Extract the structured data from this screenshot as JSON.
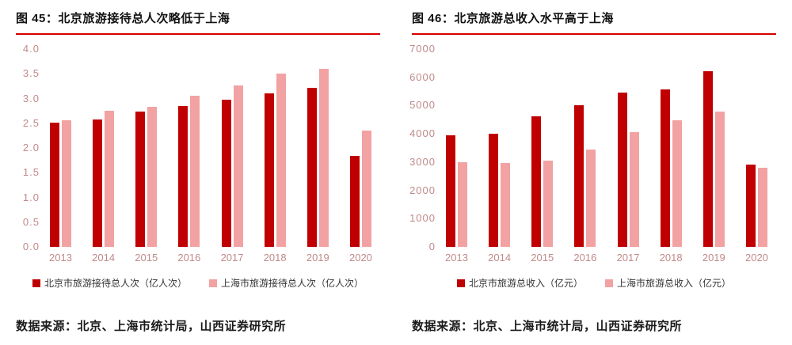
{
  "colors": {
    "beijing": "#C00000",
    "shanghai": "#F2A2A2",
    "title_rule": "#D60000",
    "axis_label": "#C08A8A"
  },
  "chart_data": [
    {
      "type": "bar",
      "title": "图 45：北京旅游接待总人次略低于上海",
      "categories": [
        "2013",
        "2014",
        "2015",
        "2016",
        "2017",
        "2018",
        "2019",
        "2020"
      ],
      "series": [
        {
          "name": "北京市旅游接待总人次（亿人次）",
          "color_key": "beijing",
          "values": [
            2.51,
            2.57,
            2.73,
            2.85,
            2.97,
            3.1,
            3.22,
            1.84
          ]
        },
        {
          "name": "上海市旅游接待总人次（亿人次）",
          "color_key": "shanghai",
          "values": [
            2.56,
            2.76,
            2.83,
            3.05,
            3.27,
            3.5,
            3.6,
            2.36
          ]
        }
      ],
      "ylim": [
        0,
        4
      ],
      "yticks": [
        "4.0",
        "3.5",
        "3.0",
        "2.5",
        "2.0",
        "1.5",
        "1.0",
        "0.5",
        "0.0"
      ],
      "grid": false,
      "legend_position": "bottom",
      "source": "数据来源：北京、上海市统计局，山西证券研究所"
    },
    {
      "type": "bar",
      "title": "图 46：北京旅游总收入水平高于上海",
      "categories": [
        "2013",
        "2014",
        "2015",
        "2016",
        "2017",
        "2018",
        "2019",
        "2020"
      ],
      "series": [
        {
          "name": "北京市旅游总收入（亿元）",
          "color_key": "beijing",
          "values": [
            3960,
            4000,
            4610,
            5020,
            5470,
            5560,
            6220,
            2920
          ]
        },
        {
          "name": "上海市旅游总收入（亿元）",
          "color_key": "shanghai",
          "values": [
            3000,
            2970,
            3050,
            3450,
            4050,
            4480,
            4800,
            2810
          ]
        }
      ],
      "ylim": [
        0,
        7000
      ],
      "yticks": [
        "7000",
        "6000",
        "5000",
        "4000",
        "3000",
        "2000",
        "1000",
        "0"
      ],
      "grid": false,
      "legend_position": "bottom",
      "source": "数据来源：北京、上海市统计局，山西证券研究所"
    }
  ]
}
